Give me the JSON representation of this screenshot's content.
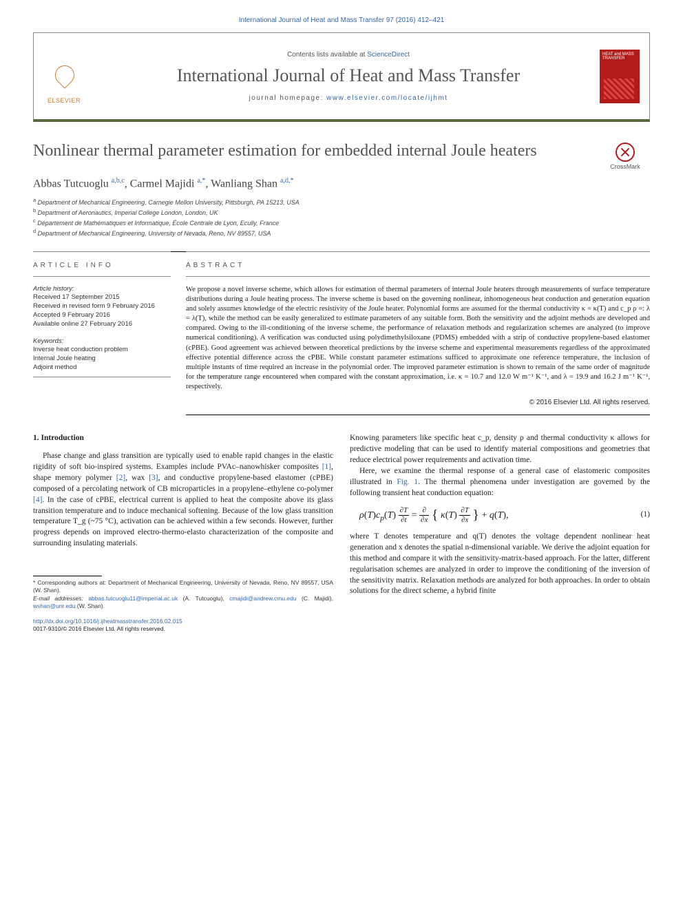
{
  "citation": "International Journal of Heat and Mass Transfer 97 (2016) 412–421",
  "header": {
    "contents_prefix": "Contents lists available at ",
    "contents_link": "ScienceDirect",
    "journal_title": "International Journal of Heat and Mass Transfer",
    "homepage_prefix": "journal homepage: ",
    "homepage_url": "www.elsevier.com/locate/ijhmt",
    "elsevier": "ELSEVIER",
    "cover_text": "HEAT and MASS TRANSFER"
  },
  "article": {
    "title": "Nonlinear thermal parameter estimation for embedded internal Joule heaters",
    "crossmark": "CrossMark",
    "authors_html": "Abbas Tutcuoglu <sup>a,b,c</sup>, Carmel Majidi <sup>a,*</sup>, Wanliang Shan <sup>a,d,*</sup>",
    "affiliations": [
      "a Department of Mechanical Engineering, Carnegie Mellon University, Pittsburgh, PA 15213, USA",
      "b Department of Aeronautics, Imperial College London, London, UK",
      "c Département de Mathématiques et Informatique, École Centrale de Lyon, Ecully, France",
      "d Department of Mechanical Engineering, University of Nevada, Reno, NV 89557, USA"
    ]
  },
  "info": {
    "heading": "ARTICLE INFO",
    "history_label": "Article history:",
    "history": [
      "Received 17 September 2015",
      "Received in revised form 9 February 2016",
      "Accepted 9 February 2016",
      "Available online 27 February 2016"
    ],
    "keywords_label": "Keywords:",
    "keywords": [
      "Inverse heat conduction problem",
      "Internal Joule heating",
      "Adjoint method"
    ]
  },
  "abstract": {
    "heading": "ABSTRACT",
    "text": "We propose a novel inverse scheme, which allows for estimation of thermal parameters of internal Joule heaters through measurements of surface temperature distributions during a Joule heating process. The inverse scheme is based on the governing nonlinear, inhomogeneous heat conduction and generation equation and solely assumes knowledge of the electric resistivity of the Joule heater. Polynomial forms are assumed for the thermal conductivity κ = κ(T) and c_p ρ =: λ = λ(T), while the method can be easily generalized to estimate parameters of any suitable form. Both the sensitivity and the adjoint methods are developed and compared. Owing to the ill-conditioning of the inverse scheme, the performance of relaxation methods and regularization schemes are analyzed (to improve numerical conditioning). A verification was conducted using polydimethylsiloxane (PDMS) embedded with a strip of conductive propylene-based elastomer (cPBE). Good agreement was achieved between theoretical predictions by the inverse scheme and experimental measurements regardless of the approximated effective potential difference across the cPBE. While constant parameter estimations sufficed to approximate one reference temperature, the inclusion of multiple instants of time required an increase in the polynomial order. The improved parameter estimation is shown to remain of the same order of magnitude for the temperature range encountered when compared with the constant approximation, i.e. κ = 10.7 and 12.0 W m⁻¹ K⁻¹, and λ = 19.9 and 16.2 J m⁻¹ K⁻¹, respectively.",
    "copyright": "© 2016 Elsevier Ltd. All rights reserved."
  },
  "intro": {
    "heading": "1. Introduction",
    "para1": "Phase change and glass transition are typically used to enable rapid changes in the elastic rigidity of soft bio-inspired systems. Examples include PVAc–nanowhisker composites [1], shape memory polymer [2], wax [3], and conductive propylene-based elastomer (cPBE) composed of a percolating network of CB microparticles in a propylene–ethylene co-polymer [4]. In the case of cPBE, electrical current is applied to heat the composite above its glass transition temperature and to induce mechanical softening. Because of the low glass transition temperature T_g (~75 °C), activation can be achieved within a few seconds. However, further progress depends on improved electro-thermo-elasto characterization of the composite and surrounding insulating materials.",
    "para2_top": "Knowing parameters like specific heat c_p, density ρ and thermal conductivity κ allows for predictive modeling that can be used to identify material compositions and geometries that reduce electrical power requirements and activation time.",
    "para3": "Here, we examine the thermal response of a general case of elastomeric composites illustrated in Fig. 1. The thermal phenomena under investigation are governed by the following transient heat conduction equation:",
    "equation_num": "(1)",
    "para4": "where T denotes temperature and q(T) denotes the voltage dependent nonlinear heat generation and x denotes the spatial n-dimensional variable. We derive the adjoint equation for this method and compare it with the sensitivity-matrix-based approach. For the latter, different regularisation schemes are analyzed in order to improve the conditioning of the inversion of the sensitivity matrix. Relaxation methods are analyzed for both approaches. In order to obtain solutions for the direct scheme, a hybrid finite"
  },
  "footnotes": {
    "corr": "* Corresponding authors at: Department of Mechanical Engineering, University of Nevada, Reno, NV 89557, USA (W. Shan).",
    "emails_label": "E-mail addresses: ",
    "emails": [
      {
        "addr": "abbas.tutcuoglu11@imperial.ac.uk",
        "who": " (A. Tutcuoglu), "
      },
      {
        "addr": "cmajidi@andrew.cmu.edu",
        "who": " (C. Majidi), "
      },
      {
        "addr": "wshan@unr.edu",
        "who": " (W. Shan)."
      }
    ]
  },
  "doi": {
    "url": "http://dx.doi.org/10.1016/j.ijheatmasstransfer.2016.02.015",
    "issn": "0017-9310/© 2016 Elsevier Ltd. All rights reserved."
  }
}
